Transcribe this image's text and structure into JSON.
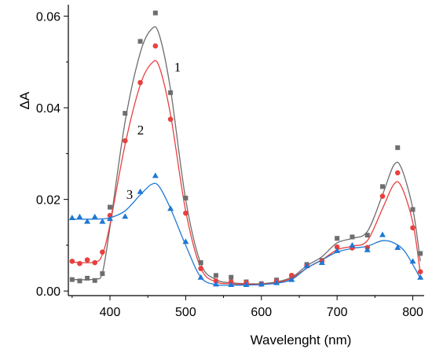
{
  "chart_data": {
    "type": "scatter",
    "title": "",
    "xlabel": "Wavelenght (nm)",
    "ylabel": "ΔA",
    "xlim": [
      345,
      815
    ],
    "ylim": [
      -0.001,
      0.0625
    ],
    "xticks": [
      400,
      500,
      600,
      700,
      800
    ],
    "yticks": [
      0.0,
      0.02,
      0.04,
      0.06
    ],
    "ytick_labels": [
      "0.00",
      "0.02",
      "0.04",
      "0.06"
    ],
    "grid": false,
    "legend": "none",
    "series": [
      {
        "name": "1",
        "color": "#6e6e6e",
        "marker": "square",
        "points": [
          [
            350,
            0.0025
          ],
          [
            360,
            0.0022
          ],
          [
            370,
            0.0028
          ],
          [
            380,
            0.0023
          ],
          [
            390,
            0.0038
          ],
          [
            400,
            0.0183
          ],
          [
            420,
            0.0388
          ],
          [
            440,
            0.0545
          ],
          [
            460,
            0.0607
          ],
          [
            480,
            0.0433
          ],
          [
            500,
            0.0203
          ],
          [
            520,
            0.0062
          ],
          [
            540,
            0.0034
          ],
          [
            560,
            0.003
          ],
          [
            580,
            0.002
          ],
          [
            600,
            0.0016
          ],
          [
            620,
            0.0024
          ],
          [
            640,
            0.0033
          ],
          [
            660,
            0.0058
          ],
          [
            680,
            0.0067
          ],
          [
            700,
            0.0115
          ],
          [
            720,
            0.0118
          ],
          [
            740,
            0.0122
          ],
          [
            760,
            0.0228
          ],
          [
            780,
            0.0313
          ],
          [
            800,
            0.0178
          ],
          [
            810,
            0.0082
          ]
        ],
        "fit": [
          [
            350,
            0.0025
          ],
          [
            380,
            0.0026
          ],
          [
            390,
            0.004
          ],
          [
            400,
            0.014
          ],
          [
            420,
            0.037
          ],
          [
            440,
            0.052
          ],
          [
            455,
            0.0572
          ],
          [
            465,
            0.056
          ],
          [
            480,
            0.044
          ],
          [
            500,
            0.02
          ],
          [
            520,
            0.006
          ],
          [
            540,
            0.0025
          ],
          [
            560,
            0.0018
          ],
          [
            580,
            0.0016
          ],
          [
            600,
            0.0016
          ],
          [
            620,
            0.002
          ],
          [
            640,
            0.003
          ],
          [
            660,
            0.0055
          ],
          [
            680,
            0.0075
          ],
          [
            700,
            0.0105
          ],
          [
            720,
            0.0115
          ],
          [
            740,
            0.013
          ],
          [
            760,
            0.021
          ],
          [
            775,
            0.0275
          ],
          [
            785,
            0.0268
          ],
          [
            800,
            0.018
          ],
          [
            810,
            0.0065
          ]
        ]
      },
      {
        "name": "2",
        "color": "#e8403f",
        "marker": "circle",
        "points": [
          [
            350,
            0.0065
          ],
          [
            360,
            0.006
          ],
          [
            370,
            0.0068
          ],
          [
            380,
            0.0062
          ],
          [
            390,
            0.0085
          ],
          [
            400,
            0.0165
          ],
          [
            420,
            0.0328
          ],
          [
            440,
            0.0455
          ],
          [
            460,
            0.0535
          ],
          [
            480,
            0.0375
          ],
          [
            500,
            0.017
          ],
          [
            520,
            0.0049
          ],
          [
            540,
            0.0022
          ],
          [
            560,
            0.002
          ],
          [
            580,
            0.0018
          ],
          [
            600,
            0.0015
          ],
          [
            620,
            0.0021
          ],
          [
            640,
            0.0034
          ],
          [
            660,
            0.0055
          ],
          [
            680,
            0.0065
          ],
          [
            700,
            0.0096
          ],
          [
            720,
            0.0094
          ],
          [
            740,
            0.0095
          ],
          [
            760,
            0.0207
          ],
          [
            780,
            0.0258
          ],
          [
            800,
            0.0138
          ],
          [
            810,
            0.0042
          ]
        ],
        "fit": [
          [
            350,
            0.0063
          ],
          [
            380,
            0.0063
          ],
          [
            390,
            0.008
          ],
          [
            400,
            0.0145
          ],
          [
            420,
            0.032
          ],
          [
            440,
            0.045
          ],
          [
            455,
            0.0497
          ],
          [
            465,
            0.049
          ],
          [
            480,
            0.0385
          ],
          [
            500,
            0.0175
          ],
          [
            520,
            0.005
          ],
          [
            540,
            0.002
          ],
          [
            560,
            0.0016
          ],
          [
            580,
            0.0015
          ],
          [
            600,
            0.0015
          ],
          [
            620,
            0.0018
          ],
          [
            640,
            0.0028
          ],
          [
            660,
            0.005
          ],
          [
            680,
            0.0068
          ],
          [
            700,
            0.009
          ],
          [
            720,
            0.0098
          ],
          [
            740,
            0.011
          ],
          [
            760,
            0.018
          ],
          [
            775,
            0.0233
          ],
          [
            785,
            0.0228
          ],
          [
            800,
            0.015
          ],
          [
            810,
            0.0038
          ]
        ]
      },
      {
        "name": "3",
        "color": "#1f78d4",
        "marker": "triangle",
        "points": [
          [
            350,
            0.016
          ],
          [
            360,
            0.0162
          ],
          [
            370,
            0.0152
          ],
          [
            380,
            0.0162
          ],
          [
            390,
            0.0152
          ],
          [
            400,
            0.0158
          ],
          [
            420,
            0.0163
          ],
          [
            440,
            0.0217
          ],
          [
            460,
            0.0252
          ],
          [
            480,
            0.018
          ],
          [
            500,
            0.0108
          ],
          [
            520,
            0.003
          ],
          [
            540,
            0.0015
          ],
          [
            560,
            0.0014
          ],
          [
            580,
            0.0014
          ],
          [
            600,
            0.0015
          ],
          [
            620,
            0.0018
          ],
          [
            640,
            0.0025
          ],
          [
            660,
            0.0055
          ],
          [
            680,
            0.0062
          ],
          [
            700,
            0.0088
          ],
          [
            720,
            0.01
          ],
          [
            740,
            0.009
          ],
          [
            760,
            0.0123
          ],
          [
            780,
            0.0095
          ],
          [
            800,
            0.0065
          ],
          [
            810,
            0.003
          ]
        ],
        "fit": [
          [
            350,
            0.0157
          ],
          [
            380,
            0.0157
          ],
          [
            400,
            0.016
          ],
          [
            420,
            0.0175
          ],
          [
            440,
            0.021
          ],
          [
            455,
            0.0233
          ],
          [
            465,
            0.0228
          ],
          [
            480,
            0.018
          ],
          [
            500,
            0.01
          ],
          [
            520,
            0.003
          ],
          [
            540,
            0.0014
          ],
          [
            560,
            0.0013
          ],
          [
            580,
            0.0013
          ],
          [
            600,
            0.0014
          ],
          [
            620,
            0.0017
          ],
          [
            640,
            0.0025
          ],
          [
            660,
            0.005
          ],
          [
            680,
            0.0068
          ],
          [
            700,
            0.0085
          ],
          [
            720,
            0.0093
          ],
          [
            740,
            0.0098
          ],
          [
            760,
            0.011
          ],
          [
            775,
            0.0105
          ],
          [
            790,
            0.0085
          ],
          [
            810,
            0.0028
          ]
        ]
      }
    ]
  }
}
